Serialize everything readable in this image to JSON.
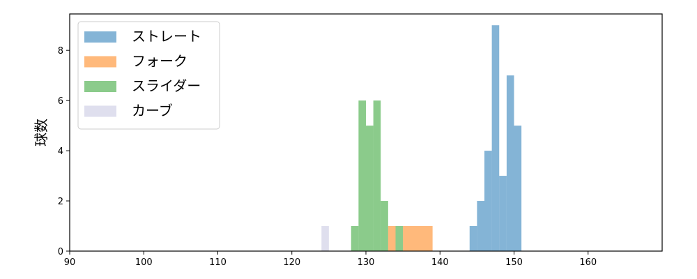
{
  "chart_data": {
    "type": "bar",
    "ylabel": "球数",
    "xlabel": "",
    "xlim": [
      90,
      170
    ],
    "ylim": [
      0,
      9.45
    ],
    "xticks": [
      90,
      100,
      110,
      120,
      130,
      140,
      150,
      160
    ],
    "yticks": [
      0,
      2,
      4,
      6,
      8
    ],
    "grid": false,
    "legend_position": "top-left",
    "series": [
      {
        "name": "ストレート",
        "color": "#1f77b4",
        "bins": [
          {
            "x0": 144,
            "x1": 145,
            "count": 1
          },
          {
            "x0": 145,
            "x1": 146,
            "count": 2
          },
          {
            "x0": 146,
            "x1": 147,
            "count": 4
          },
          {
            "x0": 147,
            "x1": 148,
            "count": 9
          },
          {
            "x0": 148,
            "x1": 149,
            "count": 3
          },
          {
            "x0": 149,
            "x1": 150,
            "count": 7
          },
          {
            "x0": 150,
            "x1": 151,
            "count": 5
          }
        ]
      },
      {
        "name": "フォーク",
        "color": "#ff7f0e",
        "bins": [
          {
            "x0": 133,
            "x1": 134,
            "count": 1
          },
          {
            "x0": 135,
            "x1": 139,
            "count": 1
          }
        ]
      },
      {
        "name": "スライダー",
        "color": "#2ca02c",
        "bins": [
          {
            "x0": 128,
            "x1": 129,
            "count": 1
          },
          {
            "x0": 129,
            "x1": 130,
            "count": 6
          },
          {
            "x0": 130,
            "x1": 131,
            "count": 5
          },
          {
            "x0": 131,
            "x1": 132,
            "count": 6
          },
          {
            "x0": 132,
            "x1": 133,
            "count": 2
          },
          {
            "x0": 134,
            "x1": 135,
            "count": 1
          }
        ]
      },
      {
        "name": "カーブ",
        "color": "#c5c5e0",
        "bins": [
          {
            "x0": 124,
            "x1": 125,
            "count": 1
          }
        ]
      }
    ]
  }
}
